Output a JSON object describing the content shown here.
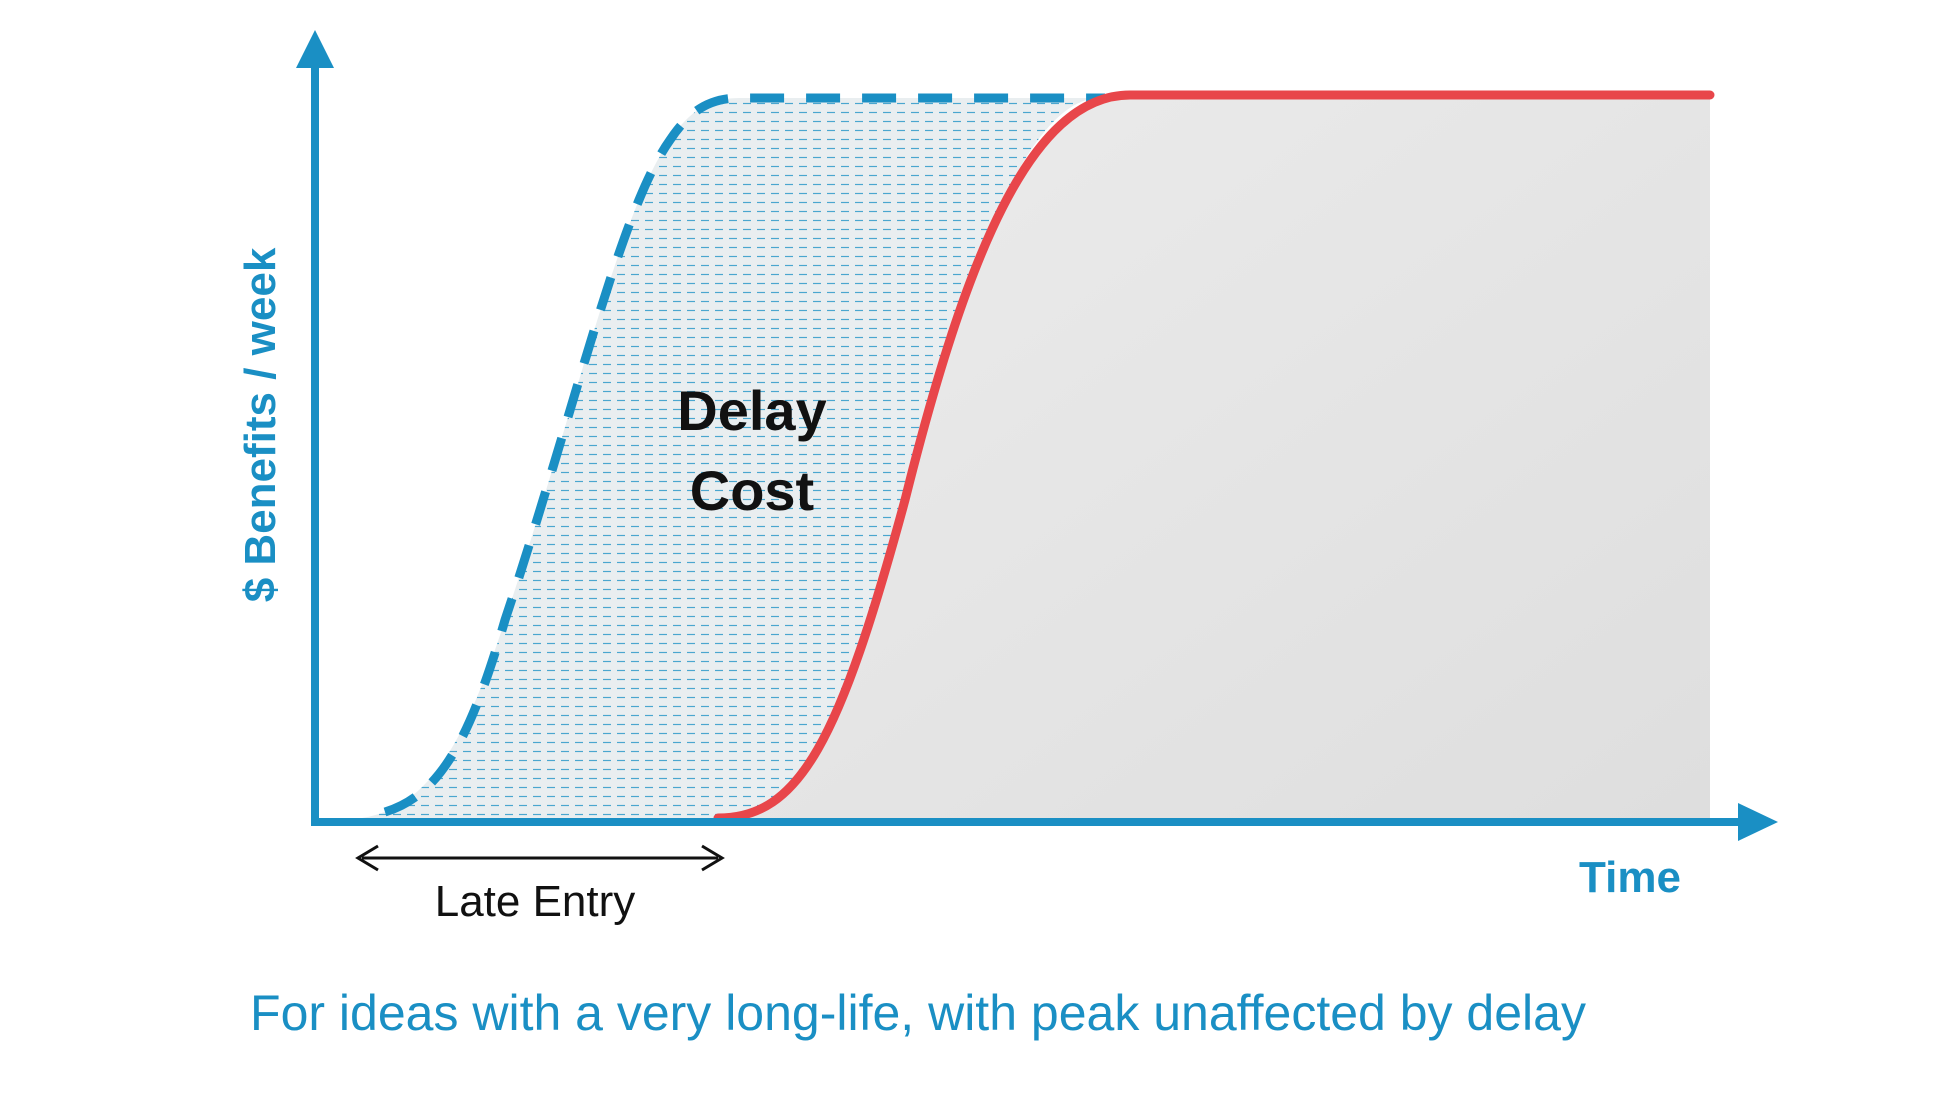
{
  "diagram": {
    "y_axis_label": "$ Benefits / week",
    "x_axis_label": "Time",
    "region_label_line1": "Delay",
    "region_label_line2": "Cost",
    "late_entry_label": "Late Entry",
    "caption": "For ideas with a very long-life, with peak unaffected by delay"
  },
  "colors": {
    "axis": "#1a8fc4",
    "early_curve": "#1a8fc4",
    "late_curve": "#e8464a",
    "late_fill": "#e2e2e2",
    "delay_fill": "#e9eef0",
    "hatch": "#4aa6cf",
    "text": "#111111",
    "caption": "#1a8fc4"
  }
}
